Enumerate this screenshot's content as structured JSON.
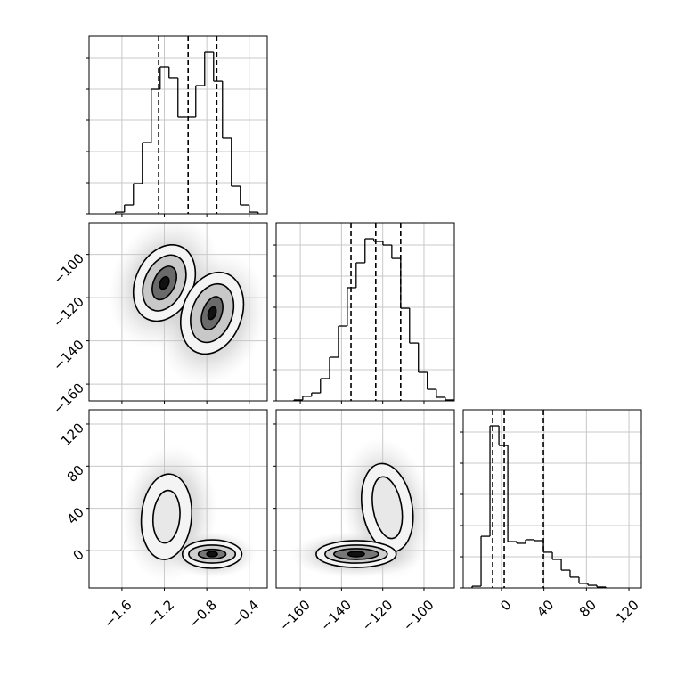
{
  "chart_data": [
    {
      "type": "hist",
      "color": "#000000",
      "grid": true,
      "xlim": [
        -1.91,
        -0.23
      ],
      "xticks": [
        -1.6,
        -1.2,
        -0.8,
        -0.4
      ],
      "ylim": [
        0,
        1143
      ],
      "yticks": [
        0,
        200,
        400,
        600,
        800,
        1000
      ],
      "bins": [
        -1.66,
        -1.576,
        -1.492,
        -1.408,
        -1.324,
        -1.24,
        -1.156,
        -1.072,
        -0.988,
        -0.904,
        -0.82,
        -0.736,
        -0.652,
        -0.568,
        -0.484,
        -0.4,
        -0.316
      ],
      "counts": [
        11,
        57,
        194,
        457,
        800,
        943,
        869,
        623,
        623,
        823,
        1040,
        851,
        486,
        177,
        57,
        11
      ],
      "quantiles": [
        -1.254,
        -0.976,
        -0.706
      ]
    },
    {
      "type": "contour",
      "grid": true,
      "xlim": [
        -1.91,
        -0.23
      ],
      "xticks": [
        -1.6,
        -1.2,
        -0.8,
        -0.4
      ],
      "ylim": [
        -167.8,
        -85.3
      ],
      "yticks": [
        {
          "value": -100,
          "label": "−100"
        },
        {
          "value": -120,
          "label": "−120"
        },
        {
          "value": -140,
          "label": "−140"
        },
        {
          "value": -160,
          "label": "−160"
        }
      ],
      "clouds": [
        {
          "x": -1.2,
          "y": -113.2,
          "rx": 0.5,
          "ry": 32,
          "angle": 25
        },
        {
          "x": -0.75,
          "y": -130,
          "rx": 0.5,
          "ry": 32,
          "angle": 20
        }
      ],
      "contours": [
        {
          "x": -1.2,
          "y": -113.2,
          "rx": 0.27,
          "ry": 18.5,
          "angle": 25,
          "fill": "#f4f4f4"
        },
        {
          "x": -0.75,
          "y": -127.2,
          "rx": 0.28,
          "ry": 19.5,
          "angle": 20,
          "fill": "#f4f4f4"
        },
        {
          "x": -1.2,
          "y": -113.2,
          "rx": 0.185,
          "ry": 13.6,
          "angle": 25,
          "fill": "#c8c8c8"
        },
        {
          "x": -0.75,
          "y": -127.2,
          "rx": 0.19,
          "ry": 14,
          "angle": 20,
          "fill": "#c8c8c8"
        },
        {
          "x": -1.2,
          "y": -113.2,
          "rx": 0.1,
          "ry": 8.2,
          "angle": 25,
          "fill": "#6a6a6a"
        },
        {
          "x": -0.75,
          "y": -127.2,
          "rx": 0.09,
          "ry": 8,
          "angle": 20,
          "fill": "#6a6a6a"
        },
        {
          "x": -1.2,
          "y": -113.2,
          "rx": 0.04,
          "ry": 3,
          "angle": 25,
          "fill": "#111111"
        },
        {
          "x": -0.75,
          "y": -127.2,
          "rx": 0.035,
          "ry": 3,
          "angle": 20,
          "fill": "#111111"
        }
      ]
    },
    {
      "type": "hist",
      "color": "#000000",
      "grid": true,
      "xlim": [
        -171.7,
        -85.3
      ],
      "xticks": [
        -160,
        -140,
        -120,
        -100
      ],
      "ylim": [
        0,
        1143
      ],
      "yticks": [
        0,
        200,
        400,
        600,
        800,
        1000
      ],
      "bins": [
        -163.1,
        -158.8,
        -154.5,
        -150.2,
        -145.8,
        -141.5,
        -137.2,
        -132.9,
        -128.6,
        -124.3,
        -119.9,
        -115.6,
        -111.3,
        -107.0,
        -102.7,
        -98.4,
        -94.0,
        -89.7,
        -85.4
      ],
      "counts": [
        6,
        29,
        51,
        143,
        280,
        480,
        726,
        886,
        1040,
        1023,
        1000,
        914,
        594,
        371,
        183,
        74,
        23,
        6
      ],
      "quantiles": [
        -135.4,
        -123.4,
        -111.3
      ]
    },
    {
      "type": "contour",
      "grid": true,
      "xlim": [
        -1.91,
        -0.23
      ],
      "xticks": [
        {
          "value": -1.6,
          "label": "−1.6"
        },
        {
          "value": -1.2,
          "label": "−1.2"
        },
        {
          "value": -0.8,
          "label": "−0.8"
        },
        {
          "value": -0.4,
          "label": "−0.4"
        }
      ],
      "ylim": [
        -35.5,
        133.5
      ],
      "yticks": [
        0,
        40,
        80,
        120
      ],
      "clouds": [
        {
          "x": -1.15,
          "y": 35,
          "rx": 0.45,
          "ry": 65,
          "angle": 5
        },
        {
          "x": -0.75,
          "y": -4,
          "rx": 0.42,
          "ry": 22,
          "angle": 0
        }
      ],
      "contours": [
        {
          "x": -1.18,
          "y": 32,
          "rx": 0.236,
          "ry": 40.6,
          "angle": 5,
          "fill": "#f4f4f4"
        },
        {
          "x": -1.18,
          "y": 32,
          "rx": 0.126,
          "ry": 25,
          "angle": 5,
          "fill": "#e8e8e8"
        },
        {
          "x": -0.75,
          "y": -3.4,
          "rx": 0.28,
          "ry": 13.5,
          "angle": 0,
          "fill": "#f4f4f4"
        },
        {
          "x": -0.75,
          "y": -3.4,
          "rx": 0.22,
          "ry": 8.5,
          "angle": 0,
          "fill": "#cfcfcf"
        },
        {
          "x": -0.75,
          "y": -3.4,
          "rx": 0.13,
          "ry": 4.5,
          "angle": 0,
          "fill": "#777777"
        },
        {
          "x": -0.75,
          "y": -3.4,
          "rx": 0.05,
          "ry": 2.5,
          "angle": 0,
          "fill": "#111111"
        }
      ]
    },
    {
      "type": "contour",
      "grid": true,
      "xlim": [
        -171.7,
        -85.3
      ],
      "xticks": [
        {
          "value": -160,
          "label": "−160"
        },
        {
          "value": -140,
          "label": "−140"
        },
        {
          "value": -120,
          "label": "−120"
        },
        {
          "value": -100,
          "label": "−100"
        }
      ],
      "ylim": [
        -35.5,
        133.5
      ],
      "yticks": [
        0,
        40,
        80,
        120
      ],
      "clouds": [
        {
          "x": -118,
          "y": 40,
          "rx": 22,
          "ry": 68,
          "angle": -10
        },
        {
          "x": -133,
          "y": -4,
          "rx": 32,
          "ry": 22,
          "angle": 0
        }
      ],
      "contours": [
        {
          "x": -117.8,
          "y": 40.6,
          "rx": 12.1,
          "ry": 42.3,
          "angle": -10,
          "fill": "#f4f4f4"
        },
        {
          "x": -117.8,
          "y": 40.6,
          "rx": 6.9,
          "ry": 29.6,
          "angle": -10,
          "fill": "#e8e8e8"
        },
        {
          "x": -132.9,
          "y": -3.4,
          "rx": 19.4,
          "ry": 12.7,
          "angle": 0,
          "fill": "#f4f4f4"
        },
        {
          "x": -132.9,
          "y": -3.4,
          "rx": 15.1,
          "ry": 8.5,
          "angle": 0,
          "fill": "#cfcfcf"
        },
        {
          "x": -132.9,
          "y": -3.4,
          "rx": 10.8,
          "ry": 5.1,
          "angle": 0,
          "fill": "#777777"
        },
        {
          "x": -132.9,
          "y": -3.4,
          "rx": 4,
          "ry": 2.5,
          "angle": 0,
          "fill": "#111111"
        }
      ]
    },
    {
      "type": "hist",
      "color": "#000000",
      "grid": true,
      "xlim": [
        -36,
        131.7
      ],
      "xticks": [
        0,
        40,
        80,
        120
      ],
      "ylim": [
        0,
        1143
      ],
      "yticks": [
        0,
        200,
        400,
        600,
        800,
        1000
      ],
      "bins": [
        -27.6,
        -19.2,
        -10.8,
        -2.4,
        6.0,
        14.3,
        22.7,
        31.1,
        39.5,
        47.9,
        56.3,
        64.6,
        73.0,
        81.4,
        89.8,
        98.2
      ],
      "counts": [
        11,
        331,
        1040,
        914,
        297,
        286,
        309,
        303,
        229,
        183,
        114,
        69,
        29,
        17,
        6
      ],
      "quantiles": [
        -8.3,
        2.6,
        39.5
      ]
    }
  ]
}
